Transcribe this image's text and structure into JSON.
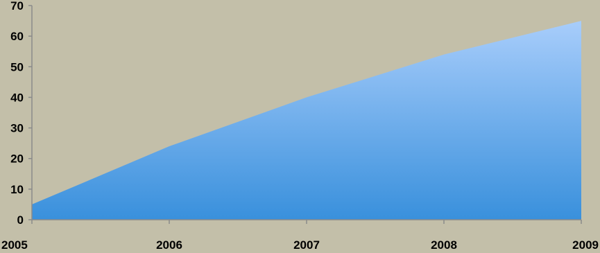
{
  "colors": {
    "background": "#c3bfa9",
    "area_top": "#a8cdfb",
    "area_bottom": "#3990dc",
    "axis": "#8a8a8a",
    "tick_text": "#000000"
  },
  "chart_data": {
    "type": "area",
    "x": [
      "2005",
      "2006",
      "2007",
      "2008",
      "2009"
    ],
    "series": [
      {
        "values": [
          5,
          24,
          40,
          54,
          65
        ]
      }
    ],
    "ylim": [
      0,
      70
    ],
    "yticks": [
      "0",
      "10",
      "20",
      "30",
      "40",
      "50",
      "60",
      "70"
    ],
    "grid": false,
    "legend": "none"
  }
}
